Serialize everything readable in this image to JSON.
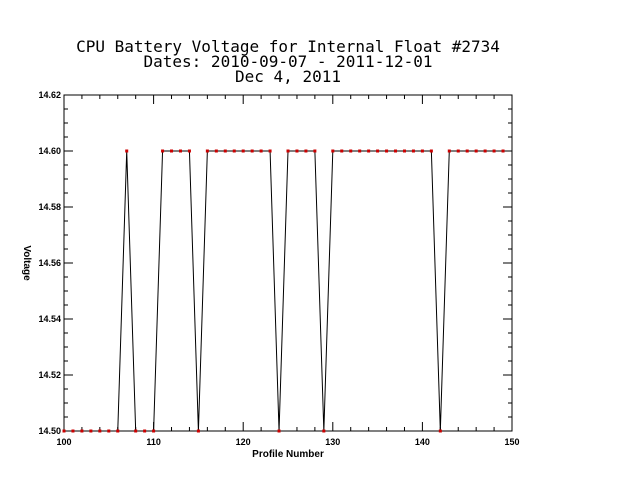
{
  "chart_data": {
    "type": "line",
    "title": [
      "CPU Battery Voltage for Internal Float #2734",
      "Dates:  2010-09-07 -  2011-12-01",
      "Dec  4, 2011"
    ],
    "xlabel": "Profile Number",
    "ylabel": "Voltage",
    "xlim": [
      100,
      150
    ],
    "ylim": [
      14.5,
      14.62
    ],
    "x_major_ticks": [
      100,
      110,
      120,
      130,
      140,
      150
    ],
    "x_tick_labels": [
      "100",
      "110",
      "120",
      "130",
      "140",
      "150"
    ],
    "y_major_ticks": [
      14.5,
      14.52,
      14.54,
      14.56,
      14.58,
      14.6,
      14.62
    ],
    "y_tick_labels": [
      "14.50",
      "14.52",
      "14.54",
      "14.56",
      "14.58",
      "14.60",
      "14.62"
    ],
    "grid": false,
    "line_color": "#000000",
    "marker_color": "#cc0000",
    "x": [
      100,
      101,
      102,
      103,
      104,
      105,
      106,
      107,
      108,
      109,
      110,
      111,
      112,
      113,
      114,
      115,
      116,
      117,
      118,
      119,
      120,
      121,
      122,
      123,
      124,
      125,
      126,
      127,
      128,
      129,
      130,
      131,
      132,
      133,
      134,
      135,
      136,
      137,
      138,
      139,
      140,
      141,
      142,
      143,
      144,
      145,
      146,
      147,
      148,
      149
    ],
    "y": [
      14.5,
      14.5,
      14.5,
      14.5,
      14.5,
      14.5,
      14.5,
      14.6,
      14.5,
      14.5,
      14.5,
      14.6,
      14.6,
      14.6,
      14.6,
      14.5,
      14.6,
      14.6,
      14.6,
      14.6,
      14.6,
      14.6,
      14.6,
      14.6,
      14.5,
      14.6,
      14.6,
      14.6,
      14.6,
      14.5,
      14.6,
      14.6,
      14.6,
      14.6,
      14.6,
      14.6,
      14.6,
      14.6,
      14.6,
      14.6,
      14.6,
      14.6,
      14.5,
      14.6,
      14.6,
      14.6,
      14.6,
      14.6,
      14.6,
      14.6
    ]
  }
}
